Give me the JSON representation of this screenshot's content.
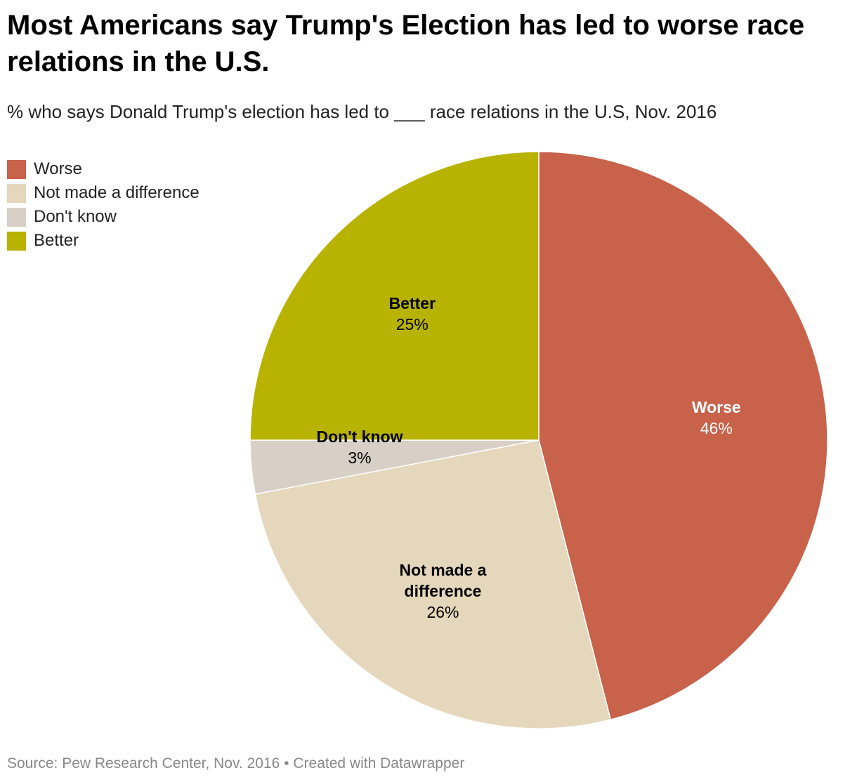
{
  "title": "Most Americans say Trump's Election has led to worse race relations in the U.S.",
  "subtitle": "% who says Donald Trump's election has led to ___ race relations in the U.S, Nov. 2016",
  "footer": {
    "source": "Source: Pew Research Center, Nov. 2016",
    "separator": "•",
    "credit": "Created with Datawrapper"
  },
  "legend": [
    {
      "label": "Worse",
      "color": "#c8624a"
    },
    {
      "label": "Not made a difference",
      "color": "#e4d7bb"
    },
    {
      "label": "Don't know",
      "color": "#d8d0c6"
    },
    {
      "label": "Better",
      "color": "#b8b200"
    }
  ],
  "chart_data": {
    "type": "pie",
    "title": "Most Americans say Trump's Election has led to worse race relations in the U.S.",
    "subtitle": "% who says Donald Trump's election has led to ___ race relations in the U.S, Nov. 2016",
    "unit": "%",
    "legend_position": "top-left",
    "slices": [
      {
        "label": "Worse",
        "value": 46,
        "display": "46%",
        "label_lines": [
          "Worse"
        ],
        "color": "#c8624a",
        "label_color": "#ffffff"
      },
      {
        "label": "Not made a difference",
        "value": 26,
        "display": "26%",
        "label_lines": [
          "Not made a",
          "difference"
        ],
        "color": "#e4d7bb",
        "label_color": "#000000"
      },
      {
        "label": "Don't know",
        "value": 3,
        "display": "3%",
        "label_lines": [
          "Don't know"
        ],
        "color": "#d8d0c6",
        "label_color": "#000000"
      },
      {
        "label": "Better",
        "value": 25,
        "display": "25%",
        "label_lines": [
          "Better"
        ],
        "color": "#b8b200",
        "label_color": "#000000"
      }
    ]
  }
}
